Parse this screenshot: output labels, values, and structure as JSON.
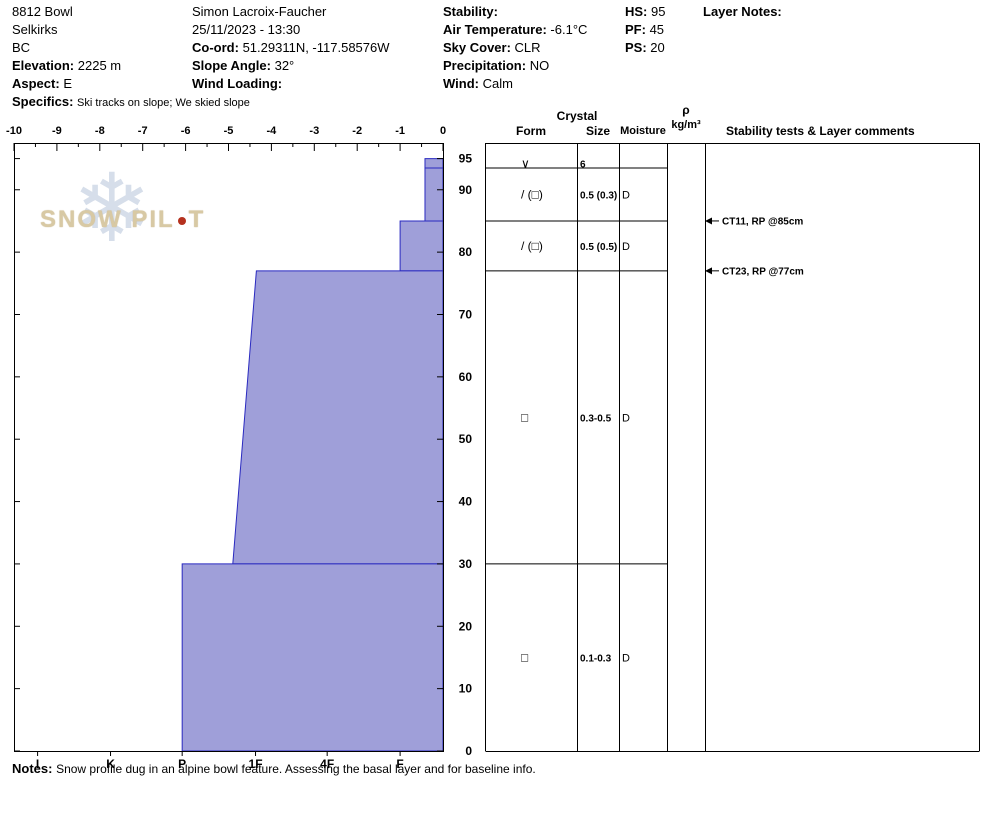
{
  "header": {
    "site": {
      "name": "8812 Bowl",
      "range": "Selkirks",
      "region": "BC",
      "elevation_label": "Elevation:",
      "elevation_value": "2225 m",
      "aspect_label": "Aspect:",
      "aspect_value": "E",
      "specifics_label": "Specifics:",
      "specifics_value": "Ski tracks on slope; We skied slope"
    },
    "observer": {
      "name": "Simon Lacroix-Faucher",
      "datetime": "25/11/2023 - 13:30",
      "coord_label": "Co-ord:",
      "coord_value": "51.29311N, -117.58576W",
      "slope_angle_label": "Slope Angle:",
      "slope_angle_value": "32°",
      "wind_loading_label": "Wind Loading:"
    },
    "conditions": {
      "stability_label": "Stability:",
      "air_temp_label": "Air Temperature:",
      "air_temp_value": "-6.1°C",
      "sky_label": "Sky Cover:",
      "sky_value": "CLR",
      "precip_label": "Precipitation:",
      "precip_value": "NO",
      "wind_label": "Wind:",
      "wind_value": "Calm"
    },
    "snowpack": {
      "hs_label": "HS:",
      "hs_value": "95",
      "pf_label": "PF:",
      "pf_value": "45",
      "ps_label": "PS:",
      "ps_value": "20"
    },
    "layer_notes_label": "Layer Notes:"
  },
  "table_headers": {
    "crystal": "Crystal",
    "form": "Form",
    "size": "Size",
    "moisture": "Moisture",
    "density_symbol": "ρ",
    "density_unit": "kg/m³",
    "comments": "Stability tests & Layer comments"
  },
  "watermark": {
    "brand_left": "SNOW PIL",
    "brand_right": "T"
  },
  "notes": {
    "label": "Notes:",
    "text": "Snow profile dug in an alpine bowl feature. Assessing the basal layer and for baseline info."
  },
  "chart_data": {
    "type": "area",
    "x_range": [
      -10,
      0
    ],
    "x_ticks": [
      -10,
      -9,
      -8,
      -7,
      -6,
      -5,
      -4,
      -3,
      -2,
      -1,
      0
    ],
    "hardness_scale": [
      {
        "label": "I",
        "x": -9.45
      },
      {
        "label": "K",
        "x": -7.75
      },
      {
        "label": "P",
        "x": -6.08
      },
      {
        "label": "1F",
        "x": -4.37
      },
      {
        "label": "4F",
        "x": -2.7
      },
      {
        "label": "F",
        "x": -1.0
      }
    ],
    "y_range": [
      0,
      97.5
    ],
    "y_ticks": [
      95,
      90,
      80,
      70,
      60,
      50,
      40,
      30,
      20,
      10,
      0
    ],
    "y_unit": "cm",
    "total_height_cm": 95,
    "layers": [
      {
        "top": 95,
        "bottom": 93.5,
        "hardness_top": -0.42,
        "hardness_bottom": -0.42,
        "form": "∨",
        "size": "6",
        "moisture": ""
      },
      {
        "top": 93.5,
        "bottom": 85,
        "hardness_top": -0.42,
        "hardness_bottom": -0.42,
        "form": "/ (□)",
        "size": "0.5 (0.3)",
        "moisture": "D"
      },
      {
        "top": 85,
        "bottom": 77,
        "hardness_top": -1.0,
        "hardness_bottom": -1.0,
        "form": "/ (□)",
        "size": "0.5 (0.5)",
        "moisture": "D"
      },
      {
        "top": 77,
        "bottom": 30,
        "hardness_top": -4.35,
        "hardness_bottom": -4.9,
        "form": "□",
        "size": "0.3-0.5",
        "moisture": "D"
      },
      {
        "top": 30,
        "bottom": 0,
        "hardness_top": -6.08,
        "hardness_bottom": -6.08,
        "form": "□",
        "size": "0.1-0.3",
        "moisture": "D"
      }
    ],
    "stability_tests": [
      {
        "label": "CT11, RP @85cm",
        "height_cm": 85
      },
      {
        "label": "CT23, RP @77cm",
        "height_cm": 77
      }
    ],
    "colors": {
      "fill": "#9f9fd9",
      "stroke": "#2a2ac0",
      "axis": "#000000"
    }
  }
}
